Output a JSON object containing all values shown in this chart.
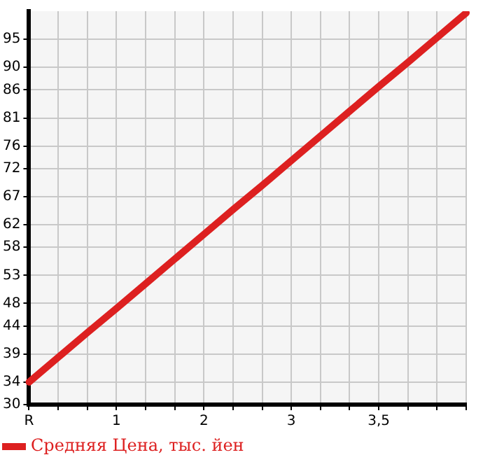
{
  "chart_data": {
    "type": "line",
    "categories": [
      "R",
      null,
      null,
      "1",
      null,
      null,
      "2",
      null,
      null,
      "3",
      null,
      null,
      "3,5",
      null,
      null,
      null
    ],
    "series": [
      {
        "name": "Средняя Цена, тыс. йен",
        "color": "#dd2020",
        "values": [
          34,
          38.4,
          42.8,
          47.1,
          51.5,
          55.9,
          60.3,
          64.7,
          69,
          73.4,
          77.8,
          82.2,
          86.6,
          90.9,
          95.3,
          99.7
        ]
      }
    ],
    "ylim": [
      30,
      100
    ],
    "yticks": [
      30,
      34,
      39,
      44,
      48,
      53,
      58,
      62,
      67,
      72,
      76,
      81,
      86,
      90,
      95
    ],
    "grid": true,
    "legend": "bottom left",
    "marker": "none",
    "line_style": "solid"
  }
}
